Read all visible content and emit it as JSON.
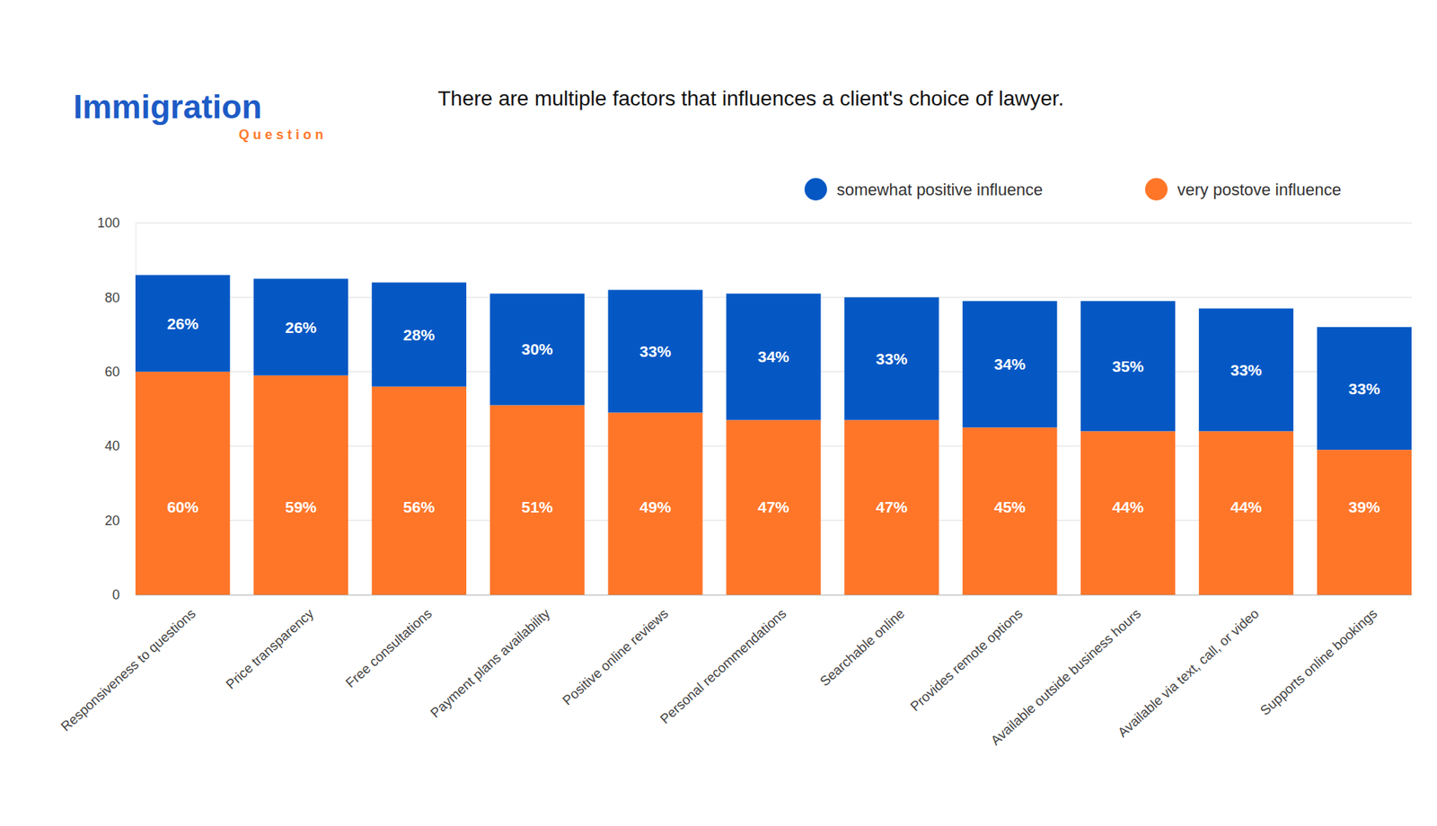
{
  "chart_data": {
    "type": "bar",
    "title": "There are multiple factors that influences a client's choice of lawyer.",
    "annotations": [
      "Immigration",
      "Question"
    ],
    "categories": [
      "Responsiveness to questions",
      "Price transparency",
      "Free consultations",
      "Payment plans availability",
      "Positive online reviews",
      "Personal recommendations",
      "Searchable online",
      "Provides remote options",
      "Available outside business hours",
      "Available via text, call, or video",
      "Supports online bookings"
    ],
    "series": [
      {
        "name": "very postove influence",
        "color": "#ff7629",
        "values": [
          60,
          59,
          56,
          51,
          49,
          47,
          47,
          45,
          44,
          44,
          39
        ],
        "value_labels": [
          "60%",
          "59%",
          "56%",
          "51%",
          "49%",
          "47%",
          "47%",
          "45%",
          "44%",
          "44%",
          "39%"
        ]
      },
      {
        "name": "somewhat positive influence",
        "color": "#0558c4",
        "values": [
          26,
          26,
          28,
          30,
          33,
          34,
          33,
          34,
          35,
          33,
          33
        ],
        "value_labels": [
          "26%",
          "26%",
          "28%",
          "30%",
          "33%",
          "34%",
          "33%",
          "34%",
          "35%",
          "33%",
          "33%"
        ]
      }
    ],
    "stacked": true,
    "data_labels": true,
    "legend": "top-right",
    "ylim": [
      0,
      100
    ],
    "yticks": [
      0,
      20,
      40,
      60,
      80,
      100
    ],
    "grid": true
  }
}
